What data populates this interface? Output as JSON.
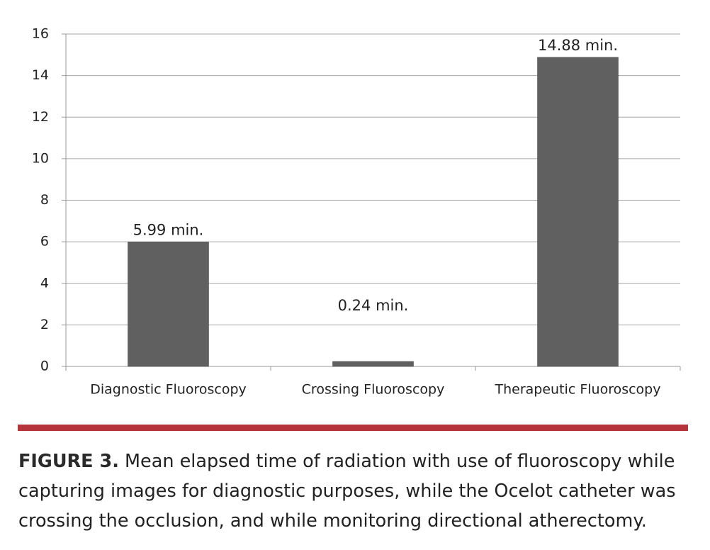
{
  "chart_data": {
    "type": "bar",
    "categories": [
      "Diagnostic Fluoroscopy",
      "Crossing Fluoroscopy",
      "Therapeutic Fluoroscopy"
    ],
    "values": [
      5.99,
      0.24,
      14.88
    ],
    "value_labels": [
      "5.99 min.",
      "0.24 min.",
      "14.88 min."
    ],
    "color": "#606060",
    "ylim": [
      0,
      16
    ],
    "yticks": [
      0,
      2,
      4,
      6,
      8,
      10,
      12,
      14,
      16
    ],
    "grid": true
  },
  "caption": {
    "label": "FIGURE 3.",
    "text": "Mean elapsed time of radiation with use of fluoroscopy while capturing images for diagnostic purposes, while the Ocelot catheter was crossing the occlusion, and while monitoring directional atherectomy."
  }
}
